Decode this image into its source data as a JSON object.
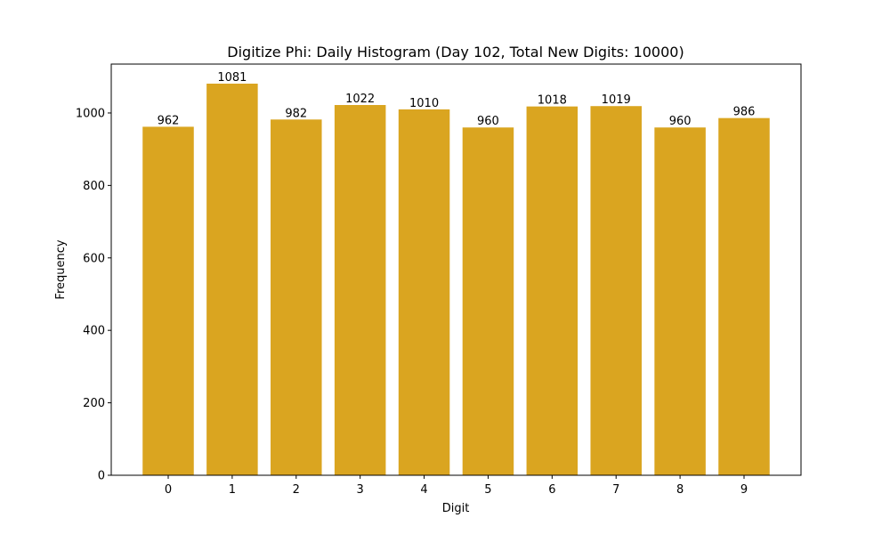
{
  "chart_data": {
    "type": "bar",
    "title": "Digitize Phi: Daily Histogram (Day 102, Total New Digits: 10000)",
    "xlabel": "Digit",
    "ylabel": "Frequency",
    "categories": [
      "0",
      "1",
      "2",
      "3",
      "4",
      "5",
      "6",
      "7",
      "8",
      "9"
    ],
    "values": [
      962,
      1081,
      982,
      1022,
      1010,
      960,
      1018,
      1019,
      960,
      986
    ],
    "data_labels": [
      "962",
      "1081",
      "982",
      "1022",
      "1010",
      "960",
      "1018",
      "1019",
      "960",
      "986"
    ],
    "yticks": [
      0,
      200,
      400,
      600,
      800,
      1000
    ],
    "ylim": [
      0,
      1135
    ],
    "grid": false,
    "legend": null,
    "bar_color": "#daa520"
  }
}
